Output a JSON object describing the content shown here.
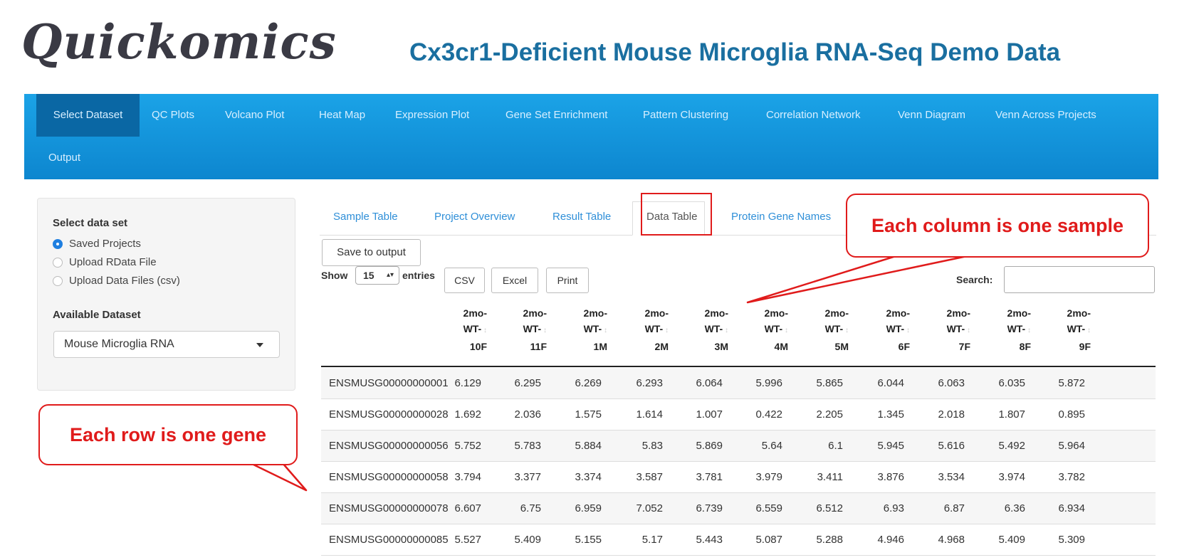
{
  "header": {
    "logo": "Quickomics",
    "title": "Cx3cr1-Deficient Mouse Microglia RNA-Seq Demo Data"
  },
  "navbar": {
    "items": [
      "Select Dataset",
      "QC Plots",
      "Volcano Plot",
      "Heat Map",
      "Expression Plot",
      "Gene Set Enrichment",
      "Pattern Clustering",
      "Correlation Network",
      "Venn Diagram",
      "Venn Across Projects",
      "Output"
    ],
    "active": "Select Dataset"
  },
  "sidebar": {
    "select_label": "Select data set",
    "options": [
      "Saved Projects",
      "Upload RData File",
      "Upload Data Files (csv)"
    ],
    "selected_option": "Saved Projects",
    "available_label": "Available Dataset",
    "dataset_value": "Mouse Microglia RNA"
  },
  "tabs": {
    "items": [
      "Sample Table",
      "Project Overview",
      "Result Table",
      "Data Table",
      "Protein Gene Names"
    ],
    "active": "Data Table"
  },
  "toolbar": {
    "save_label": "Save to output",
    "show_label": "Show",
    "entries_value": "15",
    "entries_label": "entries",
    "csv_label": "CSV",
    "excel_label": "Excel",
    "print_label": "Print",
    "search_label": "Search:",
    "search_value": ""
  },
  "table": {
    "columns": [
      [
        "2mo-",
        "WT-",
        "10F"
      ],
      [
        "2mo-",
        "WT-",
        "11F"
      ],
      [
        "2mo-",
        "WT-",
        "1M"
      ],
      [
        "2mo-",
        "WT-",
        "2M"
      ],
      [
        "2mo-",
        "WT-",
        "3M"
      ],
      [
        "2mo-",
        "WT-",
        "4M"
      ],
      [
        "2mo-",
        "WT-",
        "5M"
      ],
      [
        "2mo-",
        "WT-",
        "6F"
      ],
      [
        "2mo-",
        "WT-",
        "7F"
      ],
      [
        "2mo-",
        "WT-",
        "8F"
      ],
      [
        "2mo-",
        "WT-",
        "9F"
      ]
    ],
    "rows": [
      {
        "id": "ENSMUSG00000000001",
        "values": [
          "6.129",
          "6.295",
          "6.269",
          "6.293",
          "6.064",
          "5.996",
          "5.865",
          "6.044",
          "6.063",
          "6.035",
          "5.872"
        ]
      },
      {
        "id": "ENSMUSG00000000028",
        "values": [
          "1.692",
          "2.036",
          "1.575",
          "1.614",
          "1.007",
          "0.422",
          "2.205",
          "1.345",
          "2.018",
          "1.807",
          "0.895"
        ]
      },
      {
        "id": "ENSMUSG00000000056",
        "values": [
          "5.752",
          "5.783",
          "5.884",
          "5.83",
          "5.869",
          "5.64",
          "6.1",
          "5.945",
          "5.616",
          "5.492",
          "5.964"
        ]
      },
      {
        "id": "ENSMUSG00000000058",
        "values": [
          "3.794",
          "3.377",
          "3.374",
          "3.587",
          "3.781",
          "3.979",
          "3.411",
          "3.876",
          "3.534",
          "3.974",
          "3.782"
        ]
      },
      {
        "id": "ENSMUSG00000000078",
        "values": [
          "6.607",
          "6.75",
          "6.959",
          "7.052",
          "6.739",
          "6.559",
          "6.512",
          "6.93",
          "6.87",
          "6.36",
          "6.934"
        ]
      },
      {
        "id": "ENSMUSG00000000085",
        "values": [
          "5.527",
          "5.409",
          "5.155",
          "5.17",
          "5.443",
          "5.087",
          "5.288",
          "4.946",
          "4.968",
          "5.409",
          "5.309"
        ]
      }
    ]
  },
  "callouts": {
    "column_note": "Each column is one sample",
    "row_note": "Each row is one gene"
  },
  "colors": {
    "navbar": "#0d86cf",
    "annotation": "#e01b1b",
    "title": "#1a6fa0"
  }
}
